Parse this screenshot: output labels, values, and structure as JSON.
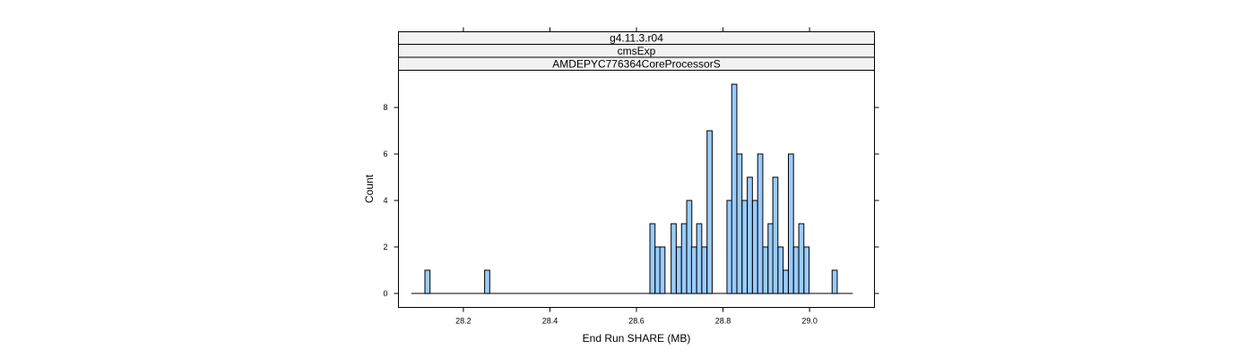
{
  "chart_data": {
    "type": "bar",
    "strips": [
      "g4.11.3.r04",
      "cmsExp",
      "AMDEPYC776364CoreProcessorS"
    ],
    "xlabel": "End Run SHARE (MB)",
    "ylabel": "Count",
    "xlim": [
      28.05,
      29.15
    ],
    "ylim": [
      -0.6,
      9.6
    ],
    "xticks": [
      28.2,
      28.4,
      28.6,
      28.8,
      29.0
    ],
    "xtick_labels": [
      "28.2",
      "28.4",
      "28.6",
      "28.8",
      "29.0"
    ],
    "yticks": [
      0,
      2,
      4,
      6,
      8
    ],
    "ytick_labels": [
      "0",
      "2",
      "4",
      "6",
      "8"
    ],
    "baseline_range": [
      28.08,
      29.1
    ],
    "bin_width": 0.0118,
    "bars": [
      {
        "x": 28.117,
        "y": 1
      },
      {
        "x": 28.255,
        "y": 1
      },
      {
        "x": 28.637,
        "y": 3
      },
      {
        "x": 28.649,
        "y": 2
      },
      {
        "x": 28.66,
        "y": 2
      },
      {
        "x": 28.686,
        "y": 3
      },
      {
        "x": 28.698,
        "y": 2
      },
      {
        "x": 28.71,
        "y": 3
      },
      {
        "x": 28.722,
        "y": 4
      },
      {
        "x": 28.733,
        "y": 2
      },
      {
        "x": 28.745,
        "y": 3
      },
      {
        "x": 28.757,
        "y": 2
      },
      {
        "x": 28.769,
        "y": 7
      },
      {
        "x": 28.815,
        "y": 4
      },
      {
        "x": 28.826,
        "y": 9
      },
      {
        "x": 28.838,
        "y": 6
      },
      {
        "x": 28.85,
        "y": 4
      },
      {
        "x": 28.862,
        "y": 5
      },
      {
        "x": 28.874,
        "y": 4
      },
      {
        "x": 28.886,
        "y": 6
      },
      {
        "x": 28.898,
        "y": 2
      },
      {
        "x": 28.91,
        "y": 3
      },
      {
        "x": 28.921,
        "y": 5
      },
      {
        "x": 28.933,
        "y": 2
      },
      {
        "x": 28.945,
        "y": 1
      },
      {
        "x": 28.957,
        "y": 6
      },
      {
        "x": 28.969,
        "y": 2
      },
      {
        "x": 28.981,
        "y": 3
      },
      {
        "x": 28.993,
        "y": 2
      },
      {
        "x": 29.058,
        "y": 1
      }
    ],
    "bar_fill": "#99ccff",
    "bar_stroke": "#000000",
    "strip_fill": "#f2f2f2",
    "grid": false,
    "legend": "none"
  }
}
